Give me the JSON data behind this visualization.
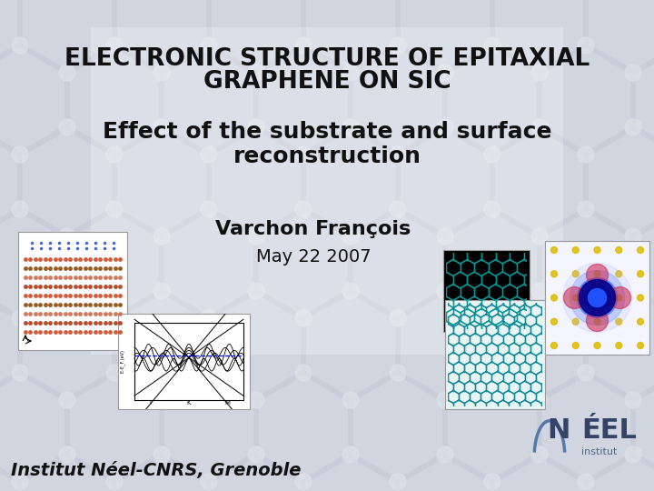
{
  "title_line1": "ELECTRONIC STRUCTURE OF EPITAXIAL",
  "title_line2": "GRAPHENE ON SIC",
  "subtitle_line1": "Effect of the substrate and surface",
  "subtitle_line2": "reconstruction",
  "author": "Varchon François",
  "date": "May 22 2007",
  "institution": "Institut Néel-CNRS, Grenoble",
  "bg_color": "#d0d5e0",
  "title_fontsize": 19,
  "subtitle_fontsize": 18,
  "author_fontsize": 16,
  "date_fontsize": 14,
  "institution_fontsize": 14,
  "text_color": "#111111"
}
